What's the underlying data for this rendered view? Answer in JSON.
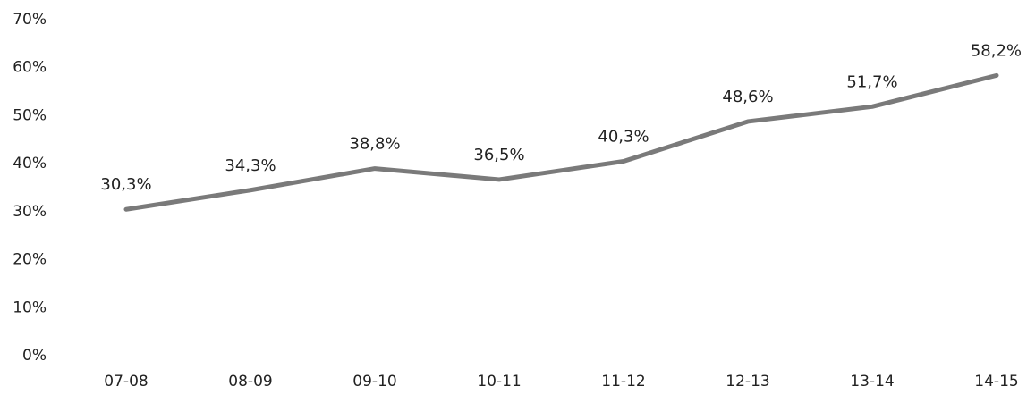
{
  "chart_data": {
    "type": "line",
    "title": "",
    "xlabel": "",
    "ylabel": "",
    "categories": [
      "07-08",
      "08-09",
      "09-10",
      "10-11",
      "11-12",
      "12-13",
      "13-14",
      "14-15"
    ],
    "series": [
      {
        "values": [
          30.3,
          34.3,
          38.8,
          36.5,
          40.3,
          48.6,
          51.7,
          58.2
        ],
        "data_labels": [
          "30,3%",
          "34,3%",
          "38,8%",
          "36,5%",
          "40,3%",
          "48,6%",
          "51,7%",
          "58,2%"
        ],
        "color": "#7a7a7a"
      }
    ],
    "y_ticks": [
      0,
      10,
      20,
      30,
      40,
      50,
      60,
      70
    ],
    "y_tick_labels": [
      "0%",
      "10%",
      "20%",
      "30%",
      "40%",
      "50%",
      "60%",
      "70%"
    ],
    "ylim": [
      0,
      70
    ],
    "grid": false,
    "legend": "none"
  }
}
